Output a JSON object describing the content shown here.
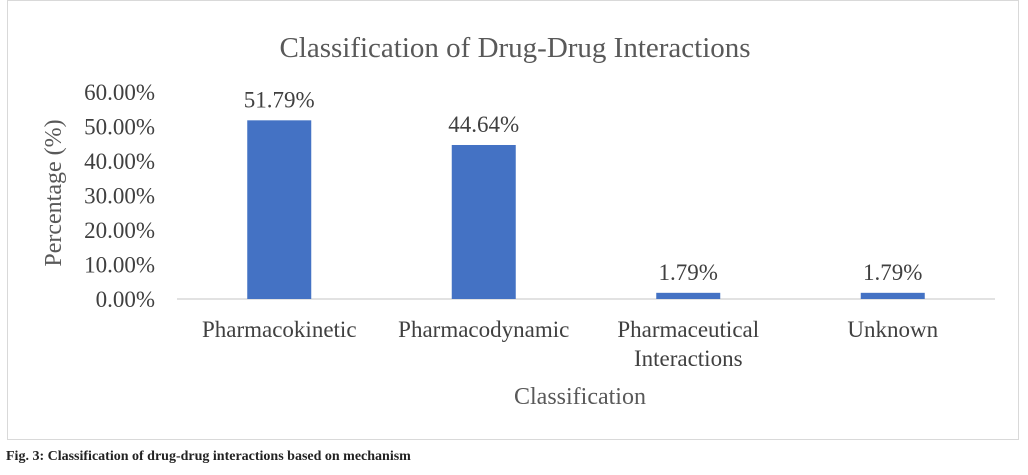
{
  "figure": {
    "caption": "Fig. 3: Classification of drug-drug interactions based on mechanism"
  },
  "chart_data": {
    "type": "bar",
    "title": "Classification of Drug-Drug Interactions",
    "xlabel": "Classification",
    "ylabel": "Percentage (%)",
    "categories": [
      [
        "Pharmacokinetic"
      ],
      [
        "Pharmacodynamic"
      ],
      [
        "Pharmaceutical",
        "Interactions"
      ],
      [
        "Unknown"
      ]
    ],
    "values": [
      51.79,
      44.64,
      1.79,
      1.79
    ],
    "data_labels": [
      "51.79%",
      "44.64%",
      "1.79%",
      "1.79%"
    ],
    "y_ticks": [
      0,
      10,
      20,
      30,
      40,
      50,
      60
    ],
    "y_tick_labels": [
      "0.00%",
      "10.00%",
      "20.00%",
      "30.00%",
      "40.00%",
      "50.00%",
      "60.00%"
    ],
    "ylim": [
      0,
      60
    ],
    "grid": false,
    "legend": "none",
    "bar_color": "#4472c4",
    "text_color": "#404040",
    "axis_color": "#d9d9d9"
  }
}
